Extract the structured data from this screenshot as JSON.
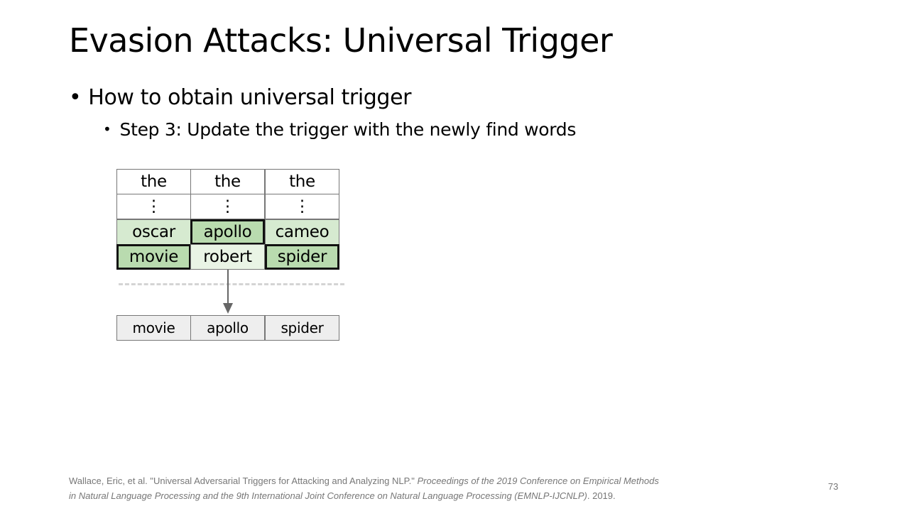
{
  "slide": {
    "title": "Evasion Attacks: Universal Trigger",
    "bullet_level1": "How to obtain universal trigger",
    "bullet_level2": "Step 3: Update the trigger with the newly find words",
    "bullet_glyph": "•"
  },
  "diagram": {
    "candidate_rows": [
      [
        "the",
        "the",
        "the"
      ],
      [
        "⋮",
        "⋮",
        "⋮"
      ],
      [
        "oscar",
        "apollo",
        "cameo"
      ],
      [
        "movie",
        "robert",
        "spider"
      ]
    ],
    "selected_words": [
      "movie",
      "apollo",
      "spider"
    ],
    "new_trigger": [
      "movie",
      "apollo",
      "spider"
    ],
    "colors": {
      "light_green": "#d6ead0",
      "green": "#b9dbaf",
      "output_gray": "#eeeeee"
    }
  },
  "footer": {
    "citation_plain": "Wallace, Eric, et al. \"Universal Adversarial Triggers for Attacking and Analyzing NLP.\"",
    "citation_italic_1": "Proceedings of the 2019 Conference on Empirical Methods",
    "citation_italic_2": "in Natural Language Processing and the 9th International Joint Conference on Natural Language Processing (EMNLP-IJCNLP)",
    "citation_end": ". 2019.",
    "page_number": "73"
  }
}
